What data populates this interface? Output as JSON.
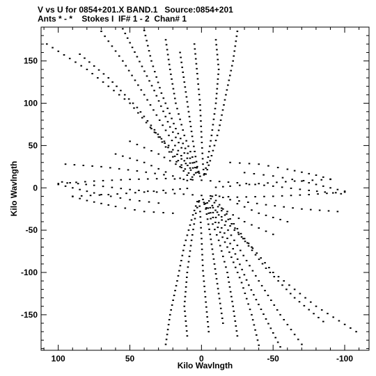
{
  "header": {
    "line1": "V vs U for 0854+201.X BAND.1   Source:0854+201",
    "line2": "Ants * - *    Stokes I  IF# 1 - 2  Chan# 1"
  },
  "chart_data": {
    "type": "scatter",
    "xlabel": "Kilo Wavlngth",
    "ylabel": "Kilo Wavlngth",
    "xlim": [
      112,
      -117
    ],
    "ylim": [
      -192,
      190
    ],
    "x_ticks": [
      100,
      50,
      0,
      -50,
      -100
    ],
    "y_ticks": [
      150,
      100,
      50,
      0,
      -50,
      -100,
      -150
    ],
    "x_tick_labels": [
      "100",
      "50",
      "0",
      "-50",
      "-100"
    ],
    "y_tick_labels": [
      "150",
      "100",
      "50",
      "0",
      "-50",
      "-100",
      "-150"
    ],
    "grid": false,
    "marker_color": "#000000",
    "description": "uv-coverage tracks (point-symmetric about origin)",
    "tracks": [
      {
        "x": [
          108,
          80,
          50,
          30,
          15,
          5
        ],
        "y": [
          170,
          140,
          100,
          60,
          25,
          5
        ]
      },
      {
        "x": [
          85,
          65,
          45,
          28,
          14,
          4
        ],
        "y": [
          158,
          130,
          95,
          58,
          27,
          8
        ]
      },
      {
        "x": [
          70,
          55,
          40,
          25,
          12,
          3
        ],
        "y": [
          185,
          150,
          110,
          68,
          32,
          10
        ]
      },
      {
        "x": [
          55,
          45,
          33,
          22,
          10,
          2
        ],
        "y": [
          188,
          155,
          115,
          72,
          35,
          12
        ]
      },
      {
        "x": [
          40,
          35,
          28,
          18,
          8,
          1
        ],
        "y": [
          186,
          150,
          112,
          70,
          35,
          13
        ]
      },
      {
        "x": [
          25,
          22,
          18,
          12,
          5,
          0
        ],
        "y": [
          175,
          140,
          100,
          62,
          30,
          11
        ]
      },
      {
        "x": [
          15,
          12,
          9,
          6,
          3,
          0
        ],
        "y": [
          160,
          125,
          90,
          55,
          25,
          8
        ]
      },
      {
        "x": [
          5,
          3,
          1,
          0,
          -1,
          -2
        ],
        "y": [
          170,
          135,
          98,
          60,
          28,
          9
        ]
      },
      {
        "x": [
          -10,
          -12,
          -10,
          -7,
          -4,
          -1
        ],
        "y": [
          175,
          140,
          100,
          62,
          30,
          10
        ]
      },
      {
        "x": [
          -25,
          -22,
          -17,
          -12,
          -6,
          -2
        ],
        "y": [
          185,
          150,
          110,
          68,
          32,
          11
        ]
      },
      {
        "x": [
          100,
          75,
          50,
          25,
          0,
          -25,
          -50,
          -75,
          -103
        ],
        "y": [
          5,
          8,
          10,
          11,
          9,
          6,
          2,
          -3,
          -8
        ]
      },
      {
        "x": [
          95,
          70,
          45,
          20,
          5
        ],
        "y": [
          28,
          25,
          20,
          14,
          6
        ]
      },
      {
        "x": [
          90,
          65,
          40,
          20,
          5
        ],
        "y": [
          -10,
          -8,
          -5,
          -2,
          0
        ]
      },
      {
        "x": [
          -20,
          -40,
          -60,
          -80,
          -95
        ],
        "y": [
          30,
          28,
          22,
          15,
          8
        ]
      },
      {
        "x": [
          -30,
          -50,
          -70,
          -90,
          -105
        ],
        "y": [
          18,
          14,
          8,
          0,
          -6
        ]
      },
      {
        "x": [
          50,
          30,
          10
        ],
        "y": [
          55,
          40,
          20
        ]
      },
      {
        "x": [
          60,
          40,
          20
        ],
        "y": [
          40,
          30,
          15
        ]
      },
      {
        "x": [
          35,
          20,
          5
        ],
        "y": [
          70,
          45,
          18
        ]
      }
    ]
  }
}
